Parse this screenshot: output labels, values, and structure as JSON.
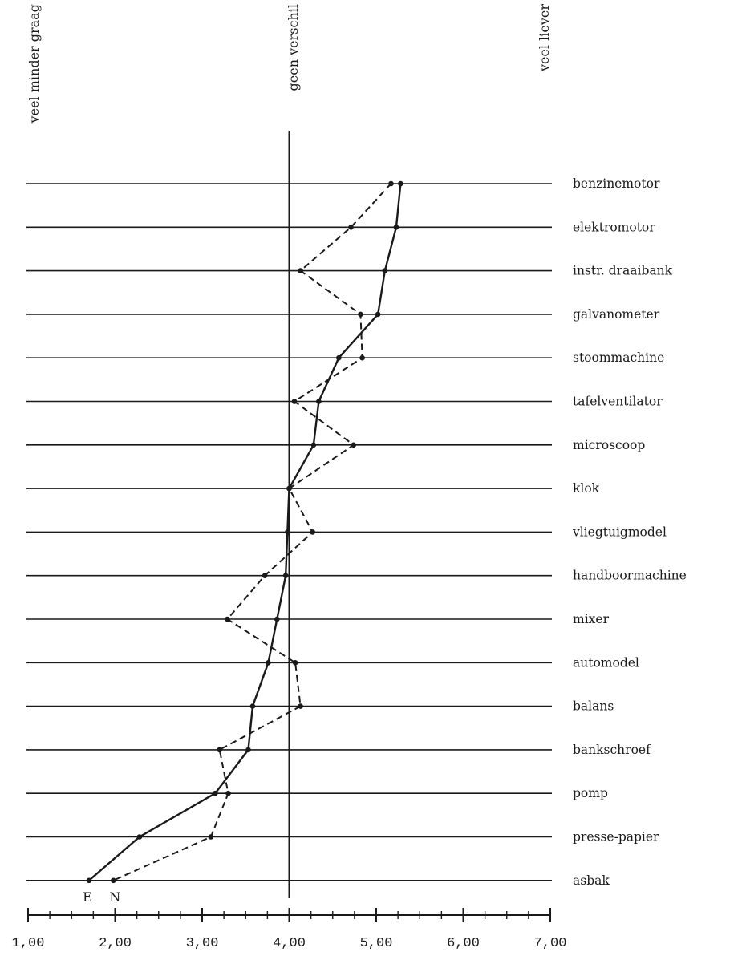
{
  "chart_data": {
    "type": "line",
    "top_labels": {
      "left": "veel minder graag",
      "middle": "geen verschil",
      "right": "veel liever"
    },
    "categories": [
      "benzinemotor",
      "elektromotor",
      "instr. draaibank",
      "galvanometer",
      "stoommachine",
      "tafelventilator",
      "microscoop",
      "klok",
      "vliegtuigmodel",
      "handboormachine",
      "mixer",
      "automodel",
      "balans",
      "bankschroef",
      "pomp",
      "presse-papier",
      "asbak"
    ],
    "series": [
      {
        "name": "E",
        "style": "solid",
        "values": [
          5.28,
          5.23,
          5.1,
          5.02,
          4.57,
          4.34,
          4.28,
          4.0,
          3.98,
          3.96,
          3.86,
          3.76,
          3.58,
          3.53,
          3.15,
          2.28,
          1.7
        ]
      },
      {
        "name": "N",
        "style": "dashed",
        "values": [
          5.17,
          4.71,
          4.13,
          4.82,
          4.84,
          4.06,
          4.74,
          4.0,
          4.27,
          3.72,
          3.29,
          4.07,
          4.13,
          3.2,
          3.3,
          3.1,
          1.98
        ]
      }
    ],
    "x_ticks": [
      "1,00",
      "2,00",
      "3,00",
      "4,00",
      "5,00",
      "6,00",
      "7,00"
    ],
    "xlim": [
      1,
      7
    ],
    "reference_value": 4.0,
    "colors": {
      "line": "#1a1a1a",
      "background": "#ffffff"
    }
  }
}
